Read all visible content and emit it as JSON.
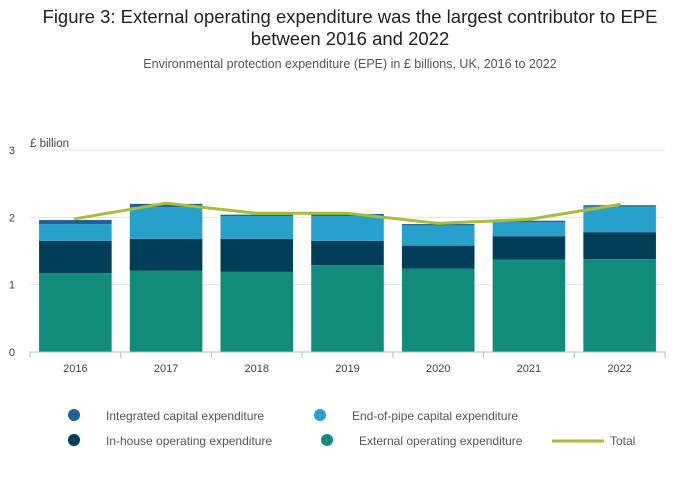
{
  "header": {
    "title_line1": "Figure 3: External operating expenditure was the largest contributor to EPE",
    "title_line2": "between 2016 and 2022",
    "subtitle": "Environmental protection expenditure (EPE) in £ billions, UK, 2016 to 2022"
  },
  "chart_data": {
    "type": "bar",
    "stacked": true,
    "title": "Figure 3: External operating expenditure was the largest contributor to EPE between 2016 and 2022",
    "subtitle": "Environmental protection expenditure (EPE) in £ billions, UK, 2016 to 2022",
    "ylabel": "£ billion",
    "ylim": [
      0,
      3
    ],
    "yticks": [
      0,
      1,
      2,
      3
    ],
    "grid": true,
    "legend_position": "bottom",
    "categories": [
      "2016",
      "2017",
      "2018",
      "2019",
      "2020",
      "2021",
      "2022"
    ],
    "series": [
      {
        "name": "External operating expenditure",
        "color": "#118c7b",
        "values": [
          1.17,
          1.21,
          1.19,
          1.29,
          1.24,
          1.37,
          1.38
        ]
      },
      {
        "name": "In-house operating expenditure",
        "color": "#003d59",
        "values": [
          0.48,
          0.47,
          0.49,
          0.36,
          0.34,
          0.35,
          0.4
        ]
      },
      {
        "name": "End-of-pipe capital expenditure",
        "color": "#27a0cc",
        "values": [
          0.25,
          0.47,
          0.34,
          0.37,
          0.3,
          0.21,
          0.38
        ]
      },
      {
        "name": "Integrated capital expenditure",
        "color": "#206095",
        "values": [
          0.06,
          0.05,
          0.02,
          0.03,
          0.02,
          0.02,
          0.02
        ]
      }
    ],
    "total": {
      "name": "Total",
      "color": "#a8bd3a",
      "values": [
        1.98,
        2.21,
        2.06,
        2.06,
        1.91,
        1.97,
        2.19
      ]
    },
    "legend": [
      {
        "name": "Integrated capital expenditure",
        "color": "#206095",
        "shape": "circle"
      },
      {
        "name": "End-of-pipe capital expenditure",
        "color": "#27a0cc",
        "shape": "circle"
      },
      {
        "name": "In-house operating expenditure",
        "color": "#003d59",
        "shape": "circle"
      },
      {
        "name": "External operating expenditure",
        "color": "#118c7b",
        "shape": "circle"
      },
      {
        "name": "Total",
        "color": "#a8bd3a",
        "shape": "line"
      }
    ]
  }
}
